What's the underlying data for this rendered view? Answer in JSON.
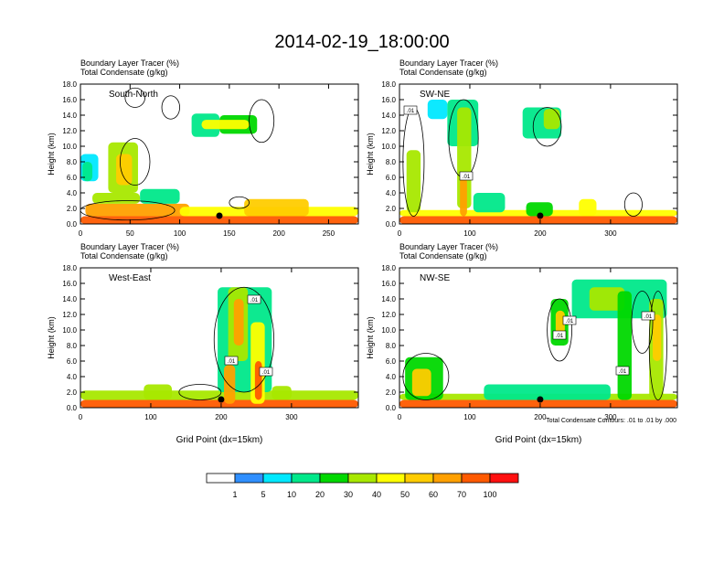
{
  "page_title": "2014-02-19_18:00:00",
  "chart_data": [
    {
      "type": "heatmap",
      "id": "sn",
      "line1": "Boundary Layer Tracer   (%)",
      "line2": "Total Condensate   (g/kg)",
      "panel_label": "South-North",
      "ylabel": "Height (km)",
      "xlabel": "",
      "xlim": [
        0,
        280
      ],
      "ylim": [
        0,
        18
      ],
      "xticks": [
        0,
        50,
        100,
        150,
        200,
        250
      ],
      "yticks": [
        "0.0",
        "2.0",
        "4.0",
        "6.0",
        "8.0",
        "10.0",
        "12.0",
        "14.0",
        "16.0",
        "18.0"
      ],
      "marker_x": 140,
      "contour_labels": [],
      "blobs": [
        {
          "x": [
            0,
            280
          ],
          "y": [
            0,
            1.0
          ],
          "v": 88
        },
        {
          "x": [
            5,
            110
          ],
          "y": [
            1.0,
            2.6
          ],
          "v": 62
        },
        {
          "x": [
            12,
            60
          ],
          "y": [
            2.6,
            4.0
          ],
          "v": 35
        },
        {
          "x": [
            28,
            58
          ],
          "y": [
            4.0,
            10.5
          ],
          "v": 35
        },
        {
          "x": [
            36,
            52
          ],
          "y": [
            5.0,
            9.0
          ],
          "v": 55
        },
        {
          "x": [
            0,
            18
          ],
          "y": [
            5.5,
            9.0
          ],
          "v": 6
        },
        {
          "x": [
            2,
            12
          ],
          "y": [
            5.5,
            8.0
          ],
          "v": 12
        },
        {
          "x": [
            60,
            100
          ],
          "y": [
            2.6,
            4.5
          ],
          "v": 18
        },
        {
          "x": [
            100,
            280
          ],
          "y": [
            1.0,
            2.2
          ],
          "v": 45
        },
        {
          "x": [
            165,
            230
          ],
          "y": [
            1.0,
            3.2
          ],
          "v": 58
        },
        {
          "x": [
            112,
            140
          ],
          "y": [
            11.2,
            14.2
          ],
          "v": 18
        },
        {
          "x": [
            140,
            178
          ],
          "y": [
            11.6,
            14.0
          ],
          "v": 28
        },
        {
          "x": [
            122,
            170
          ],
          "y": [
            12.2,
            13.4
          ],
          "v": 42
        }
      ],
      "contours": [
        {
          "x": [
            0,
            95,
            0
          ],
          "y": [
            0.5,
            3.0,
            14.0
          ]
        },
        {
          "x": [
            40,
            70,
            0
          ],
          "y": [
            5,
            11,
            0
          ]
        },
        {
          "x": [
            45,
            65,
            0
          ],
          "y": [
            15,
            17.5,
            0
          ]
        },
        {
          "x": [
            82,
            100,
            0
          ],
          "y": [
            13.5,
            16.5,
            0
          ]
        },
        {
          "x": [
            170,
            195,
            0
          ],
          "y": [
            10.5,
            16,
            0
          ]
        },
        {
          "x": [
            150,
            170,
            0
          ],
          "y": [
            2,
            3.5,
            0
          ]
        }
      ]
    },
    {
      "type": "heatmap",
      "id": "swne",
      "line1": "Boundary Layer Tracer   (%)",
      "line2": "Total Condensate   (g/kg)",
      "panel_label": "SW-NE",
      "ylabel": "Height (km)",
      "xlabel": "",
      "xlim": [
        0,
        395
      ],
      "ylim": [
        0,
        18
      ],
      "xticks": [
        0,
        100,
        200,
        300
      ],
      "yticks": [
        "0.0",
        "2.0",
        "4.0",
        "6.0",
        "8.0",
        "10.0",
        "12.0",
        "14.0",
        "16.0",
        "18.0"
      ],
      "marker_x": 200,
      "contour_labels": [
        ".01",
        ".01"
      ],
      "blobs": [
        {
          "x": [
            0,
            395
          ],
          "y": [
            0,
            1.0
          ],
          "v": 85
        },
        {
          "x": [
            0,
            395
          ],
          "y": [
            1.0,
            1.8
          ],
          "v": 40
        },
        {
          "x": [
            10,
            30
          ],
          "y": [
            1.5,
            9.5
          ],
          "v": 32
        },
        {
          "x": [
            40,
            68
          ],
          "y": [
            13.5,
            16.0
          ],
          "v": 6
        },
        {
          "x": [
            68,
            112
          ],
          "y": [
            10.0,
            16.0
          ],
          "v": 12
        },
        {
          "x": [
            82,
            102
          ],
          "y": [
            2.0,
            15.0
          ],
          "v": 30
        },
        {
          "x": [
            86,
            96
          ],
          "y": [
            1.0,
            6.0
          ],
          "v": 62
        },
        {
          "x": [
            105,
            150
          ],
          "y": [
            1.5,
            4.0
          ],
          "v": 15
        },
        {
          "x": [
            180,
            218
          ],
          "y": [
            1.0,
            2.8
          ],
          "v": 22
        },
        {
          "x": [
            255,
            280
          ],
          "y": [
            1.0,
            3.2
          ],
          "v": 42
        },
        {
          "x": [
            175,
            230
          ],
          "y": [
            11.0,
            15.0
          ],
          "v": 14
        },
        {
          "x": [
            205,
            228
          ],
          "y": [
            12.2,
            14.8
          ],
          "v": 38
        }
      ],
      "contours": [
        {
          "x": [
            5,
            35,
            0
          ],
          "y": [
            1,
            15,
            0
          ]
        },
        {
          "x": [
            70,
            112,
            0
          ],
          "y": [
            6,
            16,
            0
          ]
        },
        {
          "x": [
            190,
            230,
            0
          ],
          "y": [
            10,
            15,
            0
          ]
        },
        {
          "x": [
            320,
            345,
            0
          ],
          "y": [
            1,
            4,
            0
          ]
        }
      ]
    },
    {
      "type": "heatmap",
      "id": "we",
      "line1": "Boundary Layer Tracer   (%)",
      "line2": "Total Condensate   (g/kg)",
      "panel_label": "West-East",
      "ylabel": "Height (km)",
      "xlabel": "Grid Point (dx=15km)",
      "xlim": [
        0,
        395
      ],
      "ylim": [
        0,
        18
      ],
      "xticks": [
        0,
        100,
        200,
        300
      ],
      "yticks": [
        "0.0",
        "2.0",
        "4.0",
        "6.0",
        "8.0",
        "10.0",
        "12.0",
        "14.0",
        "16.0",
        "18.0"
      ],
      "marker_x": 200,
      "contour_labels": [
        ".01",
        ".01",
        ".01"
      ],
      "blobs": [
        {
          "x": [
            0,
            395
          ],
          "y": [
            0,
            1.0
          ],
          "v": 85
        },
        {
          "x": [
            0,
            395
          ],
          "y": [
            1.0,
            2.2
          ],
          "v": 35
        },
        {
          "x": [
            90,
            130
          ],
          "y": [
            1.0,
            3.0
          ],
          "v": 30
        },
        {
          "x": [
            195,
            272
          ],
          "y": [
            2.0,
            15.5
          ],
          "v": 14
        },
        {
          "x": [
            210,
            238
          ],
          "y": [
            6.0,
            15.5
          ],
          "v": 32
        },
        {
          "x": [
            218,
            232
          ],
          "y": [
            8.0,
            14.0
          ],
          "v": 62
        },
        {
          "x": [
            204,
            220
          ],
          "y": [
            0.5,
            5.5
          ],
          "v": 65
        },
        {
          "x": [
            242,
            262
          ],
          "y": [
            0.5,
            11.0
          ],
          "v": 40
        },
        {
          "x": [
            248,
            258
          ],
          "y": [
            1.0,
            6.0
          ],
          "v": 70
        },
        {
          "x": [
            272,
            300
          ],
          "y": [
            1.0,
            2.8
          ],
          "v": 30
        }
      ],
      "contours": [
        {
          "x": [
            190,
            275,
            0
          ],
          "y": [
            2,
            15.5,
            0
          ]
        },
        {
          "x": [
            140,
            200,
            0
          ],
          "y": [
            1,
            3,
            0
          ]
        }
      ]
    },
    {
      "type": "heatmap",
      "id": "nwse",
      "line1": "Boundary Layer Tracer   (%)",
      "line2": "Total Condensate   (g/kg)",
      "panel_label": "NW-SE",
      "ylabel": "Height (km)",
      "xlabel": "Grid Point (dx=15km)",
      "xlim": [
        0,
        395
      ],
      "ylim": [
        0,
        18
      ],
      "xticks": [
        0,
        100,
        200,
        300
      ],
      "yticks": [
        "0.0",
        "2.0",
        "4.0",
        "6.0",
        "8.0",
        "10.0",
        "12.0",
        "14.0",
        "16.0",
        "18.0"
      ],
      "marker_x": 200,
      "contour_labels": [
        ".01",
        ".01",
        ".01",
        ".01"
      ],
      "footer": "Total Condensate Contours: .01 to .01 by .000",
      "blobs": [
        {
          "x": [
            0,
            395
          ],
          "y": [
            0,
            1.0
          ],
          "v": 85
        },
        {
          "x": [
            0,
            395
          ],
          "y": [
            1.0,
            1.8
          ],
          "v": 35
        },
        {
          "x": [
            8,
            62
          ],
          "y": [
            1.0,
            6.5
          ],
          "v": 28
        },
        {
          "x": [
            18,
            45
          ],
          "y": [
            1.5,
            5.0
          ],
          "v": 58
        },
        {
          "x": [
            215,
            240
          ],
          "y": [
            8.0,
            14.0
          ],
          "v": 22
        },
        {
          "x": [
            222,
            235
          ],
          "y": [
            9.5,
            12.5
          ],
          "v": 58
        },
        {
          "x": [
            245,
            380
          ],
          "y": [
            11.5,
            16.5
          ],
          "v": 12
        },
        {
          "x": [
            270,
            320
          ],
          "y": [
            12.5,
            15.5
          ],
          "v": 32
        },
        {
          "x": [
            310,
            330
          ],
          "y": [
            1.0,
            15.0
          ],
          "v": 20
        },
        {
          "x": [
            355,
            375
          ],
          "y": [
            1.0,
            14.0
          ],
          "v": 30
        },
        {
          "x": [
            360,
            372
          ],
          "y": [
            6.0,
            12.0
          ],
          "v": 55
        },
        {
          "x": [
            120,
            300
          ],
          "y": [
            1.0,
            3.0
          ],
          "v": 18
        }
      ],
      "contours": [
        {
          "x": [
            5,
            70,
            0
          ],
          "y": [
            1,
            7,
            0
          ]
        },
        {
          "x": [
            210,
            245,
            0
          ],
          "y": [
            6,
            14,
            0
          ]
        },
        {
          "x": [
            330,
            360,
            0
          ],
          "y": [
            7,
            15,
            0
          ]
        },
        {
          "x": [
            355,
            380,
            0
          ],
          "y": [
            1,
            15,
            0
          ]
        }
      ]
    }
  ],
  "colorbar": {
    "colors": [
      "#ffffff",
      "#2f8fff",
      "#00e8ff",
      "#00e88a",
      "#00d800",
      "#a8e800",
      "#ffff00",
      "#ffcc00",
      "#ffa000",
      "#ff5a00",
      "#ff1010"
    ],
    "labels": [
      "1",
      "5",
      "10",
      "20",
      "30",
      "40",
      "50",
      "60",
      "70",
      "100"
    ]
  }
}
